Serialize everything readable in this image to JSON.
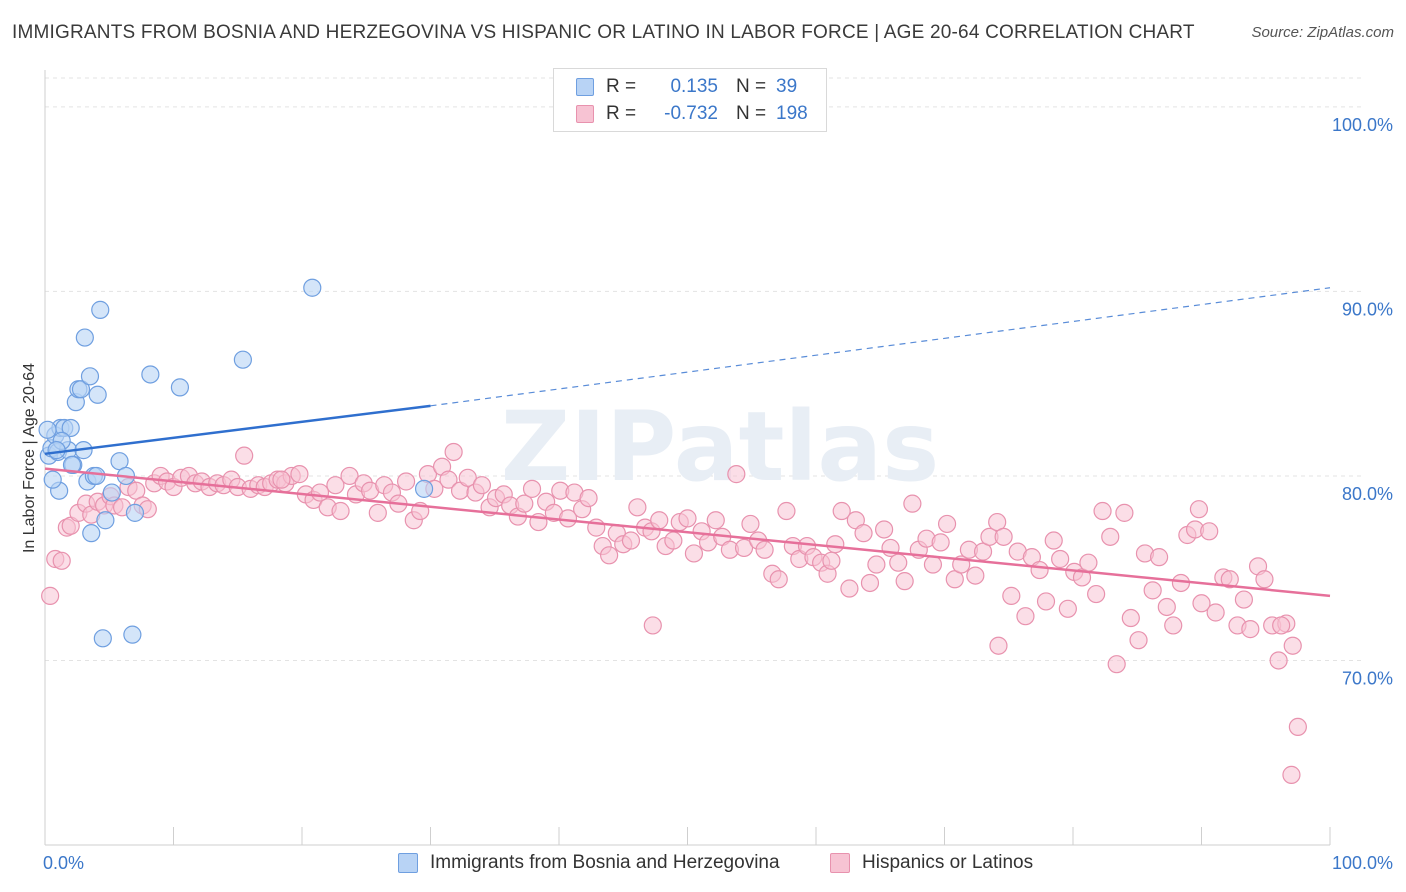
{
  "title": "IMMIGRANTS FROM BOSNIA AND HERZEGOVINA VS HISPANIC OR LATINO IN LABOR FORCE | AGE 20-64 CORRELATION CHART",
  "source": "Source: ZipAtlas.com",
  "watermark": "ZIPatlas",
  "legend_stats": [
    {
      "r_label": "R =",
      "r_value": "0.135",
      "n_label": "N =",
      "n_value": "39"
    },
    {
      "r_label": "R =",
      "r_value": "-0.732",
      "n_label": "N =",
      "n_value": "198"
    }
  ],
  "colors": {
    "blue_fill": "#b8d3f5",
    "blue_stroke": "#6f9fe0",
    "blue_line": "#2f6fce",
    "pink_fill": "#f7c3d3",
    "pink_stroke": "#e892ae",
    "pink_line": "#e6709a",
    "tick_text": "#3b77c9",
    "grid": "#e3e3e3"
  },
  "chart_data": {
    "type": "scatter",
    "title": "IMMIGRANTS FROM BOSNIA AND HERZEGOVINA VS HISPANIC OR LATINO IN LABOR FORCE | AGE 20-64 CORRELATION CHART",
    "xlabel": "",
    "ylabel": "In Labor Force | Age 20-64",
    "xlim": [
      0,
      100
    ],
    "ylim": [
      60,
      102
    ],
    "x_tick_labels": [
      "0.0%",
      "100.0%"
    ],
    "y_ticks": [
      70,
      80,
      90,
      100
    ],
    "y_tick_labels": [
      "70.0%",
      "80.0%",
      "90.0%",
      "100.0%"
    ],
    "grid": true,
    "legend_position": "top-center",
    "series": [
      {
        "name": "Immigrants from Bosnia and Herzegovina",
        "color": "#6f9fe0",
        "trend": {
          "x0": 0,
          "y0": 81.2,
          "x1": 30,
          "y1": 83.8,
          "dashed_to_x": 100,
          "dashed_to_y": 90.2
        },
        "points": [
          [
            0.3,
            81.1
          ],
          [
            0.5,
            81.5
          ],
          [
            0.8,
            82.2
          ],
          [
            1.0,
            81.3
          ],
          [
            1.2,
            82.6
          ],
          [
            1.5,
            82.6
          ],
          [
            1.8,
            81.4
          ],
          [
            2.0,
            82.6
          ],
          [
            1.1,
            79.2
          ],
          [
            2.2,
            80.6
          ],
          [
            2.4,
            84.0
          ],
          [
            2.6,
            84.7
          ],
          [
            2.8,
            84.7
          ],
          [
            3.0,
            81.4
          ],
          [
            3.1,
            87.5
          ],
          [
            3.3,
            79.7
          ],
          [
            3.5,
            85.4
          ],
          [
            3.6,
            76.9
          ],
          [
            3.8,
            80.0
          ],
          [
            4.0,
            80.0
          ],
          [
            4.1,
            84.4
          ],
          [
            4.3,
            89.0
          ],
          [
            4.5,
            71.2
          ],
          [
            4.7,
            77.6
          ],
          [
            5.2,
            79.1
          ],
          [
            5.8,
            80.8
          ],
          [
            6.3,
            80.0
          ],
          [
            6.8,
            71.4
          ],
          [
            7.0,
            78.0
          ],
          [
            8.2,
            85.5
          ],
          [
            10.5,
            84.8
          ],
          [
            15.4,
            86.3
          ],
          [
            20.8,
            90.2
          ],
          [
            29.5,
            79.3
          ],
          [
            0.2,
            82.5
          ],
          [
            0.6,
            79.8
          ],
          [
            1.3,
            81.9
          ],
          [
            2.1,
            80.6
          ],
          [
            0.9,
            81.4
          ]
        ]
      },
      {
        "name": "Hispanics or Latinos",
        "color": "#e892ae",
        "trend": {
          "x0": 0,
          "y0": 80.4,
          "x1": 100,
          "y1": 73.5
        },
        "points": [
          [
            0.4,
            73.5
          ],
          [
            0.8,
            75.5
          ],
          [
            1.3,
            75.4
          ],
          [
            1.7,
            77.2
          ],
          [
            2.0,
            77.3
          ],
          [
            2.6,
            78.0
          ],
          [
            3.2,
            78.5
          ],
          [
            3.6,
            77.9
          ],
          [
            4.1,
            78.6
          ],
          [
            4.6,
            78.4
          ],
          [
            5.1,
            78.9
          ],
          [
            5.4,
            78.4
          ],
          [
            6.0,
            78.3
          ],
          [
            6.5,
            79.4
          ],
          [
            7.1,
            79.2
          ],
          [
            7.6,
            78.4
          ],
          [
            8.0,
            78.2
          ],
          [
            8.5,
            79.6
          ],
          [
            9.0,
            80.0
          ],
          [
            9.5,
            79.7
          ],
          [
            10.0,
            79.4
          ],
          [
            10.6,
            79.9
          ],
          [
            11.2,
            80.0
          ],
          [
            11.7,
            79.6
          ],
          [
            12.2,
            79.7
          ],
          [
            12.8,
            79.4
          ],
          [
            13.4,
            79.6
          ],
          [
            13.9,
            79.5
          ],
          [
            14.5,
            79.8
          ],
          [
            15.0,
            79.4
          ],
          [
            15.5,
            81.1
          ],
          [
            16.0,
            79.3
          ],
          [
            16.6,
            79.5
          ],
          [
            17.1,
            79.4
          ],
          [
            17.6,
            79.6
          ],
          [
            18.1,
            79.8
          ],
          [
            18.7,
            79.6
          ],
          [
            19.2,
            80.0
          ],
          [
            19.8,
            80.1
          ],
          [
            20.3,
            79.0
          ],
          [
            20.9,
            78.7
          ],
          [
            21.4,
            79.1
          ],
          [
            22.0,
            78.3
          ],
          [
            22.6,
            79.5
          ],
          [
            23.0,
            78.1
          ],
          [
            23.7,
            80.0
          ],
          [
            24.2,
            79.0
          ],
          [
            24.8,
            79.6
          ],
          [
            25.3,
            79.2
          ],
          [
            25.9,
            78.0
          ],
          [
            26.4,
            79.5
          ],
          [
            27.0,
            79.1
          ],
          [
            27.5,
            78.5
          ],
          [
            28.1,
            79.7
          ],
          [
            28.7,
            77.6
          ],
          [
            29.2,
            78.1
          ],
          [
            29.8,
            80.1
          ],
          [
            30.3,
            79.3
          ],
          [
            30.9,
            80.5
          ],
          [
            31.4,
            79.8
          ],
          [
            31.8,
            81.3
          ],
          [
            32.3,
            79.2
          ],
          [
            32.9,
            79.9
          ],
          [
            33.5,
            79.1
          ],
          [
            34.0,
            79.5
          ],
          [
            34.6,
            78.3
          ],
          [
            35.1,
            78.8
          ],
          [
            35.7,
            79.0
          ],
          [
            36.2,
            78.4
          ],
          [
            36.8,
            77.8
          ],
          [
            37.3,
            78.5
          ],
          [
            37.9,
            79.3
          ],
          [
            38.4,
            77.5
          ],
          [
            39.0,
            78.6
          ],
          [
            39.6,
            78.0
          ],
          [
            40.1,
            79.2
          ],
          [
            40.7,
            77.7
          ],
          [
            41.2,
            79.1
          ],
          [
            41.8,
            78.2
          ],
          [
            42.3,
            78.8
          ],
          [
            42.9,
            77.2
          ],
          [
            43.4,
            76.2
          ],
          [
            43.9,
            75.7
          ],
          [
            44.5,
            76.9
          ],
          [
            45.0,
            76.3
          ],
          [
            45.6,
            76.5
          ],
          [
            46.1,
            78.3
          ],
          [
            46.7,
            77.2
          ],
          [
            47.2,
            77.0
          ],
          [
            47.8,
            77.6
          ],
          [
            48.3,
            76.2
          ],
          [
            48.9,
            76.5
          ],
          [
            49.4,
            77.5
          ],
          [
            50.0,
            77.7
          ],
          [
            50.5,
            75.8
          ],
          [
            51.1,
            77.0
          ],
          [
            51.6,
            76.4
          ],
          [
            52.2,
            77.6
          ],
          [
            52.7,
            76.7
          ],
          [
            53.3,
            76.0
          ],
          [
            53.8,
            80.1
          ],
          [
            54.4,
            76.1
          ],
          [
            54.9,
            77.4
          ],
          [
            55.5,
            76.5
          ],
          [
            56.0,
            76.0
          ],
          [
            56.6,
            74.7
          ],
          [
            57.1,
            74.4
          ],
          [
            57.7,
            78.1
          ],
          [
            58.2,
            76.2
          ],
          [
            58.7,
            75.5
          ],
          [
            59.3,
            76.2
          ],
          [
            59.8,
            75.6
          ],
          [
            60.4,
            75.3
          ],
          [
            60.9,
            74.7
          ],
          [
            61.5,
            76.3
          ],
          [
            62.0,
            78.1
          ],
          [
            62.6,
            73.9
          ],
          [
            63.1,
            77.6
          ],
          [
            63.7,
            76.9
          ],
          [
            64.2,
            74.2
          ],
          [
            64.7,
            75.2
          ],
          [
            65.3,
            77.1
          ],
          [
            65.8,
            76.1
          ],
          [
            66.4,
            75.3
          ],
          [
            66.9,
            74.3
          ],
          [
            67.5,
            78.5
          ],
          [
            68.0,
            76.0
          ],
          [
            68.6,
            76.6
          ],
          [
            69.1,
            75.2
          ],
          [
            69.7,
            76.4
          ],
          [
            70.2,
            77.4
          ],
          [
            70.8,
            74.4
          ],
          [
            71.3,
            75.2
          ],
          [
            71.9,
            76.0
          ],
          [
            72.4,
            74.6
          ],
          [
            73.0,
            75.9
          ],
          [
            73.5,
            76.7
          ],
          [
            74.1,
            77.5
          ],
          [
            74.6,
            76.7
          ],
          [
            75.2,
            73.5
          ],
          [
            75.7,
            75.9
          ],
          [
            76.3,
            72.4
          ],
          [
            76.8,
            75.6
          ],
          [
            77.4,
            74.9
          ],
          [
            77.9,
            73.2
          ],
          [
            78.5,
            76.5
          ],
          [
            79.0,
            75.5
          ],
          [
            79.6,
            72.8
          ],
          [
            80.1,
            74.8
          ],
          [
            80.7,
            74.5
          ],
          [
            81.2,
            75.3
          ],
          [
            81.8,
            73.6
          ],
          [
            82.3,
            78.1
          ],
          [
            82.9,
            76.7
          ],
          [
            83.4,
            69.8
          ],
          [
            84.0,
            78.0
          ],
          [
            84.5,
            72.3
          ],
          [
            85.1,
            71.1
          ],
          [
            85.6,
            75.8
          ],
          [
            86.2,
            73.8
          ],
          [
            86.7,
            75.6
          ],
          [
            87.3,
            72.9
          ],
          [
            87.8,
            71.9
          ],
          [
            88.4,
            74.2
          ],
          [
            88.9,
            76.8
          ],
          [
            89.5,
            77.1
          ],
          [
            90.0,
            73.1
          ],
          [
            90.6,
            77.0
          ],
          [
            91.1,
            72.6
          ],
          [
            91.7,
            74.5
          ],
          [
            92.2,
            74.4
          ],
          [
            92.8,
            71.9
          ],
          [
            93.3,
            73.3
          ],
          [
            93.8,
            71.7
          ],
          [
            94.4,
            75.1
          ],
          [
            94.9,
            74.4
          ],
          [
            95.5,
            71.9
          ],
          [
            96.0,
            70.0
          ],
          [
            96.6,
            72.0
          ],
          [
            97.1,
            70.8
          ],
          [
            97.5,
            66.4
          ],
          [
            97.0,
            63.8
          ],
          [
            89.8,
            78.2
          ],
          [
            74.2,
            70.8
          ],
          [
            47.3,
            71.9
          ],
          [
            96.2,
            71.9
          ],
          [
            61.2,
            75.4
          ],
          [
            18.4,
            79.8
          ]
        ]
      }
    ]
  },
  "bottom_legend": [
    {
      "label": "Immigrants from Bosnia and Herzegovina"
    },
    {
      "label": "Hispanics or Latinos"
    }
  ]
}
